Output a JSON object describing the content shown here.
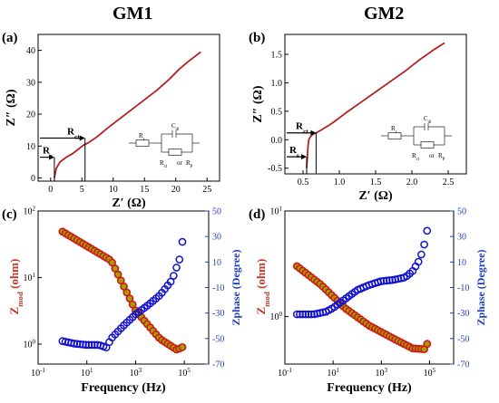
{
  "headers": {
    "left": "GM1",
    "right": "GM2"
  },
  "colors": {
    "red_line": "#c0392b",
    "red_marker": "#d01818",
    "marker_center": "#a0a000",
    "blue_marker": "#1010d0",
    "blue_axis": "#1f3fbf",
    "red_axis": "#c0392b",
    "nyquist_line": "#b22222"
  },
  "chart_data": [
    {
      "id": "a",
      "panel_label": "(a)",
      "type": "line",
      "title": "",
      "xlabel": "Z′ (Ω)",
      "ylabel": "Z″ (Ω)",
      "xlim": [
        -2,
        27
      ],
      "ylim": [
        -1,
        45
      ],
      "xticks": [
        0,
        5,
        10,
        15,
        20,
        25
      ],
      "yticks": [
        0,
        10,
        20,
        30,
        40
      ],
      "series": [
        {
          "x": [
            0.6,
            0.9,
            1.5,
            2.5,
            3.5,
            4.3,
            4.8,
            5.3,
            6.0,
            7.5,
            9.0,
            11.0,
            13.0,
            15.0,
            17.0,
            19.0,
            20.5,
            22.0,
            23.0,
            24.0
          ],
          "y": [
            0.0,
            3.0,
            5.0,
            6.5,
            7.6,
            8.8,
            9.6,
            10.3,
            11.0,
            13.0,
            15.5,
            18.5,
            21.5,
            24.5,
            27.5,
            31.0,
            34.0,
            36.5,
            38.0,
            39.5
          ]
        }
      ],
      "annotations": {
        "rct": "R",
        "rct_sub": "ct",
        "rs": "R",
        "rs_sub": "s",
        "rs_x": 0.6,
        "rct_x": 5.5,
        "rs_y": 6.5,
        "rct_y": 12.5
      },
      "circuit": {
        "r1": "R",
        "r1_sub": "s",
        "c": "C",
        "c_sub": "dl",
        "r2": "R",
        "r2_sub": "ct",
        "or": "or",
        "r3": "R",
        "r3_sub": "P"
      }
    },
    {
      "id": "b",
      "panel_label": "(b)",
      "type": "line",
      "title": "",
      "xlabel": "Z′ (Ω)",
      "ylabel": "Z″ (Ω)",
      "xlim": [
        0.25,
        2.75
      ],
      "ylim": [
        -0.6,
        1.85
      ],
      "xticks": [
        0.5,
        1.0,
        1.5,
        2.0,
        2.5
      ],
      "xtick_labels": [
        "0.5",
        "1.0",
        "1.5",
        "2.0",
        "2.5"
      ],
      "yticks": [
        -0.5,
        0.0,
        0.5,
        1.0,
        1.5
      ],
      "ytick_labels": [
        "-0.5",
        "0.0",
        "0.5",
        "1.0",
        "1.5"
      ],
      "series": [
        {
          "x": [
            0.55,
            0.56,
            0.57,
            0.58,
            0.6,
            0.63,
            0.68,
            0.75,
            0.9,
            1.1,
            1.3,
            1.5,
            1.7,
            1.9,
            2.1,
            2.3,
            2.45
          ],
          "y": [
            -0.5,
            -0.3,
            -0.1,
            0.0,
            0.05,
            0.09,
            0.12,
            0.17,
            0.29,
            0.48,
            0.66,
            0.84,
            1.02,
            1.2,
            1.4,
            1.58,
            1.7
          ]
        }
      ],
      "annotations": {
        "rct": "R",
        "rct_sub": "ct",
        "rs": "R",
        "rs_sub": "s",
        "rs_x": 0.55,
        "rct_x": 0.68,
        "rs_y": -0.3,
        "rct_y": 0.12
      },
      "circuit": {
        "r1": "R",
        "r1_sub": "s",
        "c": "C",
        "c_sub": "dl",
        "r2": "R",
        "r2_sub": "ct",
        "or": "or",
        "r3": "R",
        "r3_sub": "P"
      }
    },
    {
      "id": "c",
      "panel_label": "(c)",
      "type": "scatter",
      "title": "",
      "xlabel": "Frequency (Hz)",
      "ylabel_left": "Z",
      "ylabel_left_sub": "mod",
      "ylabel_left_unit": " (ohm)",
      "ylabel_right": "Zphase (Degree)",
      "xscale": "log",
      "xlim_exp": [
        -1,
        6
      ],
      "yscale_left": "log",
      "ylim_left_exp": [
        -0.3,
        2
      ],
      "ylim_right": [
        -70,
        50
      ],
      "yticks_right": [
        -70,
        -50,
        -30,
        -10,
        10,
        30,
        50
      ],
      "xticks_exp": [
        -1,
        1,
        3,
        5
      ],
      "yticks_left_exp": [
        0,
        1,
        2
      ],
      "series_left": {
        "name": "",
        "x_exp": [
          0.0,
          2.0,
          3.0,
          4.0,
          4.7,
          5.0
        ],
        "y": [
          49,
          18,
          3.2,
          1.2,
          0.82,
          0.93
        ]
      },
      "series_right": {
        "name": "",
        "x_exp": [
          0.0,
          0.5,
          1.0,
          1.5,
          1.8,
          2.0,
          2.5,
          3.0,
          3.5,
          4.0,
          4.5,
          4.8,
          5.0
        ],
        "y": [
          -52,
          -54,
          -55,
          -55,
          -57,
          -50,
          -40,
          -31,
          -24,
          -16,
          -4,
          12,
          35
        ]
      }
    },
    {
      "id": "d",
      "panel_label": "(d)",
      "type": "scatter",
      "title": "",
      "xlabel": "Frequency (Hz)",
      "ylabel_left": "Z",
      "ylabel_left_sub": "mod",
      "ylabel_left_unit": " (ohm)",
      "ylabel_right": "Zphase (Degree)",
      "xscale": "log",
      "xlim_exp": [
        -1,
        6
      ],
      "yscale_left": "log",
      "ylim_left_exp": [
        -0.45,
        1
      ],
      "ylim_right": [
        -70,
        50
      ],
      "yticks_right": [
        -70,
        -50,
        -30,
        -10,
        10,
        30,
        50
      ],
      "xticks_exp": [
        -1,
        1,
        3,
        5
      ],
      "yticks_left_exp": [
        0,
        1
      ],
      "series_left": {
        "name": "",
        "x_exp": [
          -0.5,
          0.5,
          1.5,
          2.5,
          3.5,
          4.3,
          4.8,
          5.0
        ],
        "y": [
          3.0,
          2.0,
          1.2,
          0.82,
          0.62,
          0.5,
          0.49,
          0.62
        ]
      },
      "series_right": {
        "name": "",
        "x_exp": [
          -0.5,
          0.2,
          0.7,
          1.0,
          1.5,
          2.0,
          2.5,
          3.0,
          3.5,
          4.0,
          4.3,
          4.6,
          4.8,
          5.0
        ],
        "y": [
          -31,
          -31,
          -29,
          -26,
          -19,
          -12,
          -8,
          -5,
          -4,
          -2,
          3,
          12,
          25,
          44
        ]
      }
    }
  ]
}
